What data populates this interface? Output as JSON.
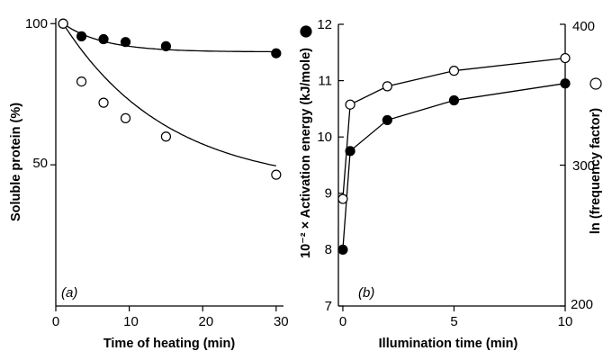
{
  "chart_data": [
    {
      "type": "scatter",
      "panel_label": "(a)",
      "xlabel": "Time of heating (min)",
      "ylabel": "Soluble protein (%)",
      "xlim": [
        0,
        31
      ],
      "ylim": [
        0,
        102
      ],
      "x_ticks": [
        0,
        10,
        20,
        30
      ],
      "x_tick_labels": [
        "0",
        "10",
        "20",
        "30"
      ],
      "y_ticks": [
        50,
        100
      ],
      "y_tick_labels": [
        "50",
        "100"
      ],
      "grid": false,
      "series": [
        {
          "marker": "filled",
          "x": [
            1,
            3.5,
            6.5,
            9.5,
            15,
            30
          ],
          "y": [
            100,
            95.5,
            94.5,
            93.5,
            92,
            89.5
          ],
          "fit": "exponential",
          "fit_params": {
            "a": 90,
            "b": 10,
            "k": 0.18
          }
        },
        {
          "marker": "open",
          "x": [
            1,
            3.5,
            6.5,
            9.5,
            15,
            30
          ],
          "y": [
            100,
            79.5,
            72,
            66.5,
            60,
            46.5
          ],
          "fit": "exponential",
          "fit_params": {
            "a": 42,
            "b": 58,
            "k": 0.07
          }
        }
      ]
    },
    {
      "type": "line",
      "panel_label": "(b)",
      "xlabel": "Illumination time (min)",
      "ylabel_left": "10⁻² × Activation energy (kJ/mole)",
      "ylabel_right": "ln (frequency factor)",
      "xlim": [
        -0.2,
        10
      ],
      "ylim_left": [
        7,
        12
      ],
      "ylim_right": [
        200,
        400
      ],
      "x_ticks": [
        0,
        5,
        10
      ],
      "x_tick_labels": [
        "0",
        "5",
        "10"
      ],
      "y_ticks_left": [
        7,
        8,
        9,
        10,
        11,
        12
      ],
      "y_tick_labels_left": [
        "7",
        "8",
        "9",
        "10",
        "11",
        "12"
      ],
      "y_ticks_right": [
        200,
        300,
        400
      ],
      "y_tick_labels_right": [
        "200",
        "300",
        "400"
      ],
      "grid": false,
      "series": [
        {
          "marker": "filled",
          "axis": "left",
          "x": [
            0,
            0.33,
            2,
            5,
            10
          ],
          "y": [
            8.0,
            9.75,
            10.3,
            10.65,
            10.95
          ]
        },
        {
          "marker": "open",
          "axis": "right",
          "x": [
            0,
            0.33,
            2,
            5,
            10
          ],
          "y": [
            276,
            343,
            356,
            367,
            376
          ]
        }
      ]
    }
  ]
}
